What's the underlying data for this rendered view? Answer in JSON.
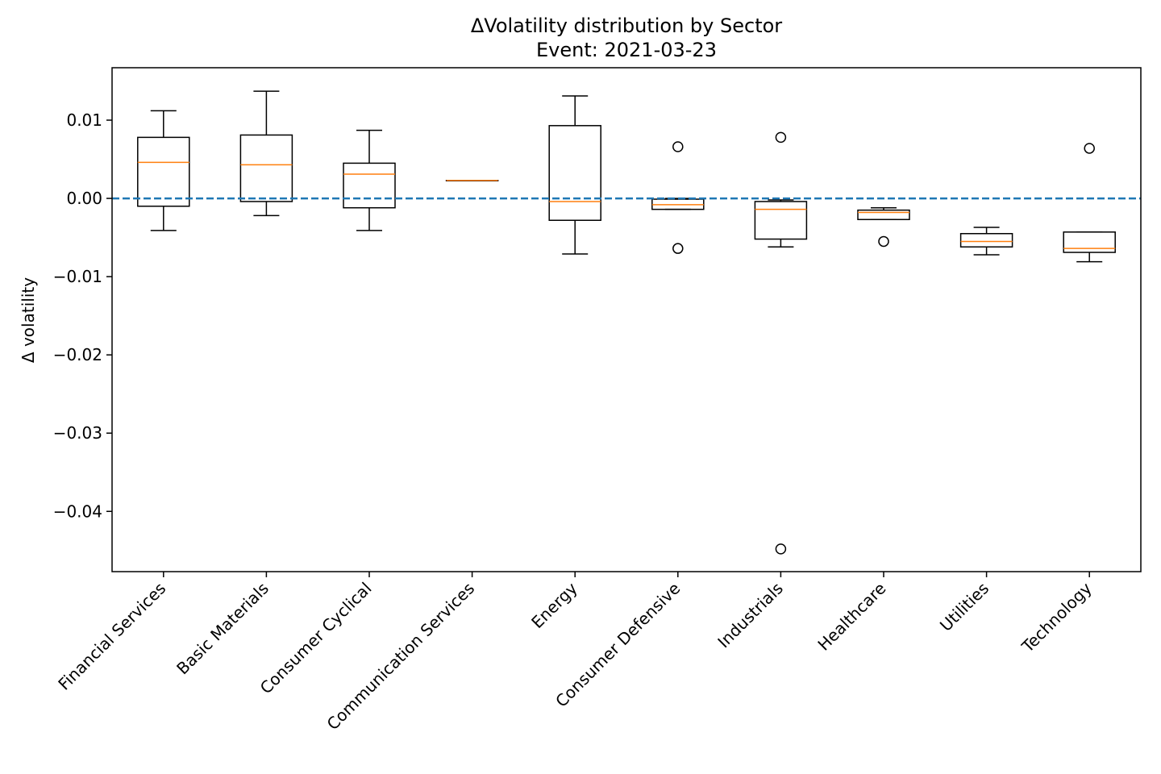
{
  "chart_data": {
    "type": "box",
    "title": "ΔVolatility distribution by Sector",
    "subtitle": "Event: 2021-03-23",
    "y_label": "Δ volatility",
    "categories": [
      "Financial Services",
      "Basic Materials",
      "Consumer Cyclical",
      "Communication Services",
      "Energy",
      "Consumer Defensive",
      "Industrials",
      "Healthcare",
      "Utilities",
      "Technology"
    ],
    "boxes": [
      {
        "whisker_low": -0.0041,
        "q1": -0.001,
        "median": 0.0046,
        "q3": 0.0078,
        "whisker_high": 0.0112,
        "outliers": []
      },
      {
        "whisker_low": -0.0022,
        "q1": -0.0004,
        "median": 0.0043,
        "q3": 0.0081,
        "whisker_high": 0.0137,
        "outliers": []
      },
      {
        "whisker_low": -0.0041,
        "q1": -0.0012,
        "median": 0.0031,
        "q3": 0.0045,
        "whisker_high": 0.0087,
        "outliers": []
      },
      {
        "whisker_low": 0.0023,
        "q1": 0.0023,
        "median": 0.0023,
        "q3": 0.0023,
        "whisker_high": 0.0023,
        "outliers": []
      },
      {
        "whisker_low": -0.0071,
        "q1": -0.0028,
        "median": -0.0004,
        "q3": 0.0093,
        "whisker_high": 0.0131,
        "outliers": []
      },
      {
        "whisker_low": -0.0014,
        "q1": -0.0014,
        "median": -0.0008,
        "q3": -0.0001,
        "whisker_high": 0.0,
        "outliers": [
          0.0066,
          -0.0064
        ]
      },
      {
        "whisker_low": -0.0062,
        "q1": -0.0052,
        "median": -0.0014,
        "q3": -0.0004,
        "whisker_high": -0.0002,
        "outliers": [
          0.0078,
          -0.0448
        ]
      },
      {
        "whisker_low": -0.0027,
        "q1": -0.0027,
        "median": -0.0018,
        "q3": -0.0015,
        "whisker_high": -0.0012,
        "outliers": [
          -0.0055
        ]
      },
      {
        "whisker_low": -0.0072,
        "q1": -0.0062,
        "median": -0.0055,
        "q3": -0.0045,
        "whisker_high": -0.0037,
        "outliers": []
      },
      {
        "whisker_low": -0.0081,
        "q1": -0.0069,
        "median": -0.0064,
        "q3": -0.0043,
        "whisker_high": -0.0043,
        "outliers": [
          0.0064
        ]
      }
    ],
    "box_color": "#000000",
    "median_color": "#ff7f0e",
    "reference_line": {
      "value": 0,
      "color": "#1f77b4",
      "style": "dashed"
    },
    "ylim": [
      -0.0477,
      0.0167
    ],
    "yticks": [
      {
        "value": 0.01,
        "label": "0.01"
      },
      {
        "value": 0,
        "label": "0.00"
      },
      {
        "value": -0.01,
        "label": "−0.01"
      },
      {
        "value": -0.02,
        "label": "−0.02"
      },
      {
        "value": -0.03,
        "label": "−0.03"
      },
      {
        "value": -0.04,
        "label": "−0.04"
      }
    ]
  }
}
